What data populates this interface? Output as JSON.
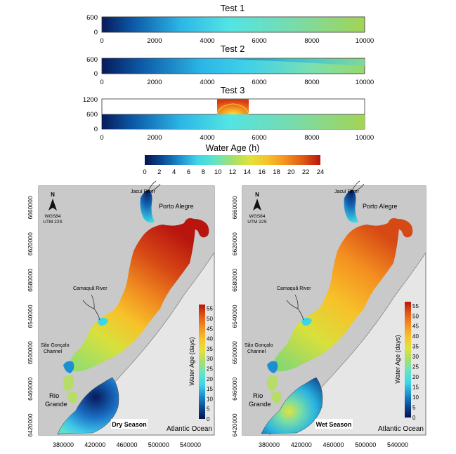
{
  "tests": [
    {
      "title": "Test 1",
      "y_ticks": [
        "0",
        "600"
      ],
      "x_ticks": [
        "0",
        "2000",
        "4000",
        "6000",
        "8000",
        "10000"
      ]
    },
    {
      "title": "Test 2",
      "y_ticks": [
        "0",
        "600"
      ],
      "x_ticks": [
        "0",
        "2000",
        "4000",
        "6000",
        "8000",
        "10000"
      ]
    },
    {
      "title": "Test 3",
      "y_ticks": [
        "0",
        "600",
        "1200"
      ],
      "x_ticks": [
        "0",
        "2000",
        "4000",
        "6000",
        "8000",
        "10000"
      ]
    }
  ],
  "top_colorbar": {
    "label": "Water Age (h)",
    "ticks": [
      "0",
      "2",
      "4",
      "6",
      "8",
      "10",
      "12",
      "14",
      "16",
      "18",
      "20",
      "22",
      "24"
    ],
    "range": [
      0,
      24
    ]
  },
  "maps": [
    {
      "season": "Dry Season",
      "colorbar_label": "Water Age (days)",
      "colorbar_ticks": [
        "0",
        "5",
        "10",
        "15",
        "20",
        "25",
        "30",
        "35",
        "40",
        "45",
        "50",
        "55"
      ]
    },
    {
      "season": "Wet Season",
      "colorbar_label": "Water Age (days)",
      "colorbar_ticks": [
        "0",
        "5",
        "10",
        "15",
        "20",
        "25",
        "30",
        "35",
        "40",
        "45",
        "50",
        "55"
      ]
    }
  ],
  "map_labels": {
    "north": "N",
    "datum": "WGS84",
    "zone": "UTM 22S",
    "jacui": "Jacuí River",
    "porto": "Porto Alegre",
    "camaqua": "Camaquã River",
    "sao1": "São Gonçalo",
    "sao2": "Channel",
    "rio1": "Rio",
    "rio2": "Grande",
    "ocean": "Atlantic Ocean"
  },
  "map_x_ticks": [
    "380000",
    "420000",
    "460000",
    "500000",
    "540000"
  ],
  "map_y_ticks": [
    "6420000",
    "6460000",
    "6500000",
    "6540000",
    "6580000",
    "6620000",
    "6660000"
  ],
  "colors": {
    "land": "#c9c9c9",
    "ocean": "#e6e6e6",
    "scale": [
      "#06124e",
      "#0a4a96",
      "#1d8fd0",
      "#3ed6e6",
      "#63e4c8",
      "#a6e06a",
      "#e2e23a",
      "#f7c22a",
      "#f49020",
      "#e25a14",
      "#b8150f"
    ]
  }
}
